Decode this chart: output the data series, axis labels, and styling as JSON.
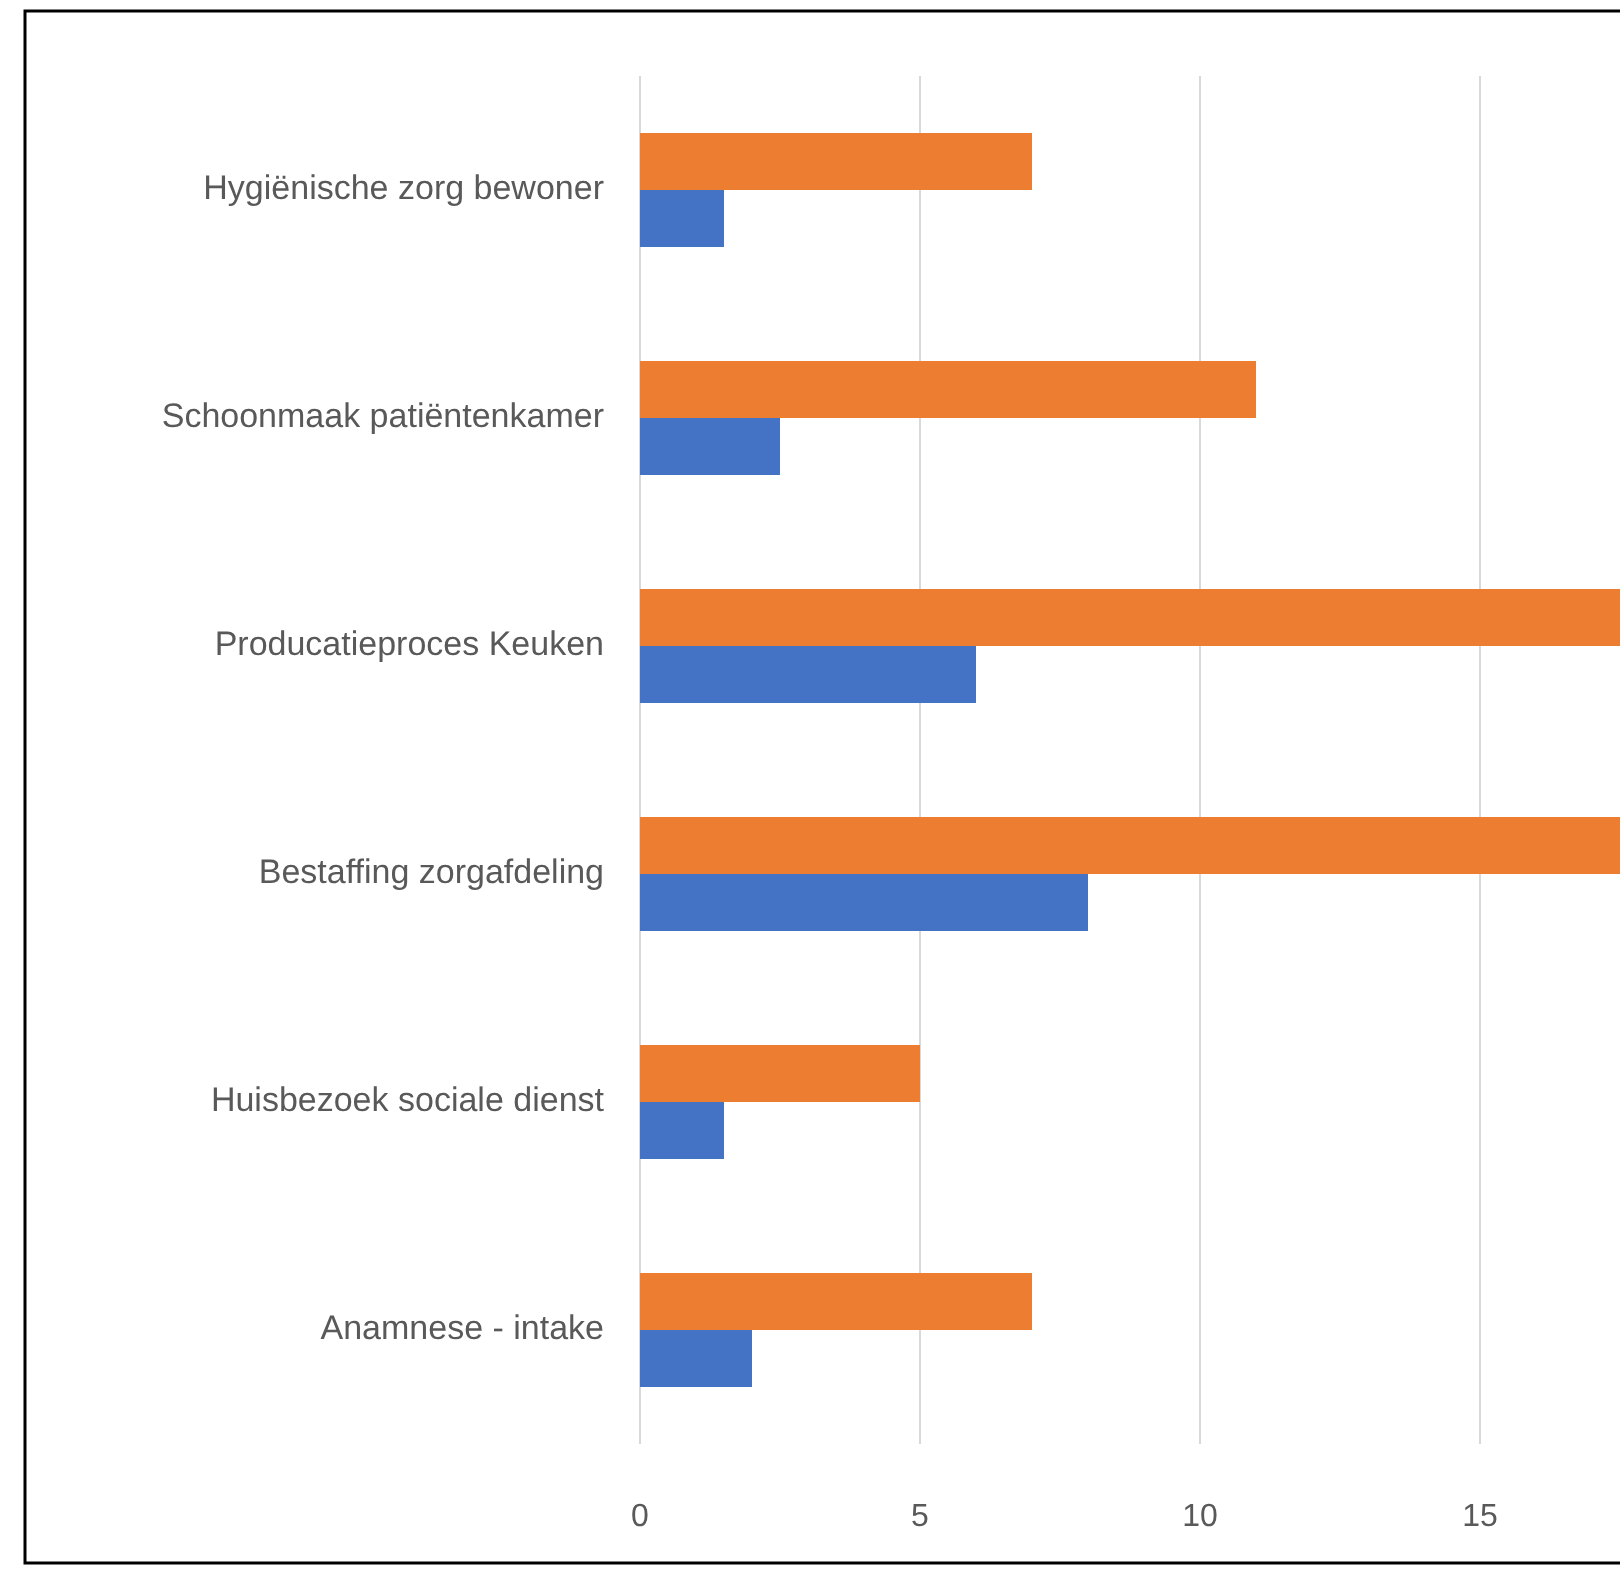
{
  "chart_data": {
    "type": "bar",
    "orientation": "horizontal",
    "categories": [
      "Hygiënische zorg bewoner",
      "Schoonmaak patiëntenkamer",
      "Producatieproces Keuken",
      "Bestaffing zorgafdeling",
      "Huisbezoek sociale dienst",
      "Anamnese - intake"
    ],
    "series": [
      {
        "color": "#ed7d31",
        "values": [
          7,
          11,
          17.5,
          17.5,
          5,
          7
        ]
      },
      {
        "color": "#4472c4",
        "values": [
          1.5,
          2.5,
          6,
          8,
          1.5,
          2
        ]
      }
    ],
    "xlim": [
      0,
      17.5
    ],
    "xticks": [
      0,
      5,
      10,
      15
    ],
    "grid": "x"
  }
}
